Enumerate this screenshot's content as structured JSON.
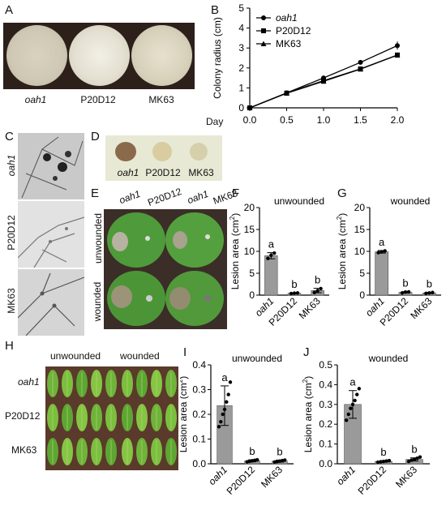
{
  "panels": {
    "A": {
      "letter": "A",
      "labels": [
        "oah1",
        "P20D12",
        "MK63"
      ]
    },
    "B": {
      "letter": "B",
      "day_label": "Day"
    },
    "C": {
      "letter": "C",
      "labels": [
        "oah1",
        "P20D12",
        "MK63"
      ]
    },
    "D": {
      "letter": "D",
      "labels": [
        "oah1",
        "P20D12",
        "MK63"
      ]
    },
    "E": {
      "letter": "E",
      "col_labels": [
        "oah1",
        "P20D12",
        "oah1",
        "MK63"
      ],
      "row_labels": [
        "unwounded",
        "wounded"
      ]
    },
    "F": {
      "letter": "F"
    },
    "G": {
      "letter": "G"
    },
    "H": {
      "letter": "H",
      "col_labels": [
        "unwounded",
        "wounded"
      ],
      "row_labels": [
        "oah1",
        "P20D12",
        "MK63"
      ]
    },
    "I": {
      "letter": "I"
    },
    "J": {
      "letter": "J"
    }
  },
  "colors": {
    "bar": "#9a9a9a",
    "leaf": "#4f9a3a",
    "background_dish": "#3a2a22"
  },
  "chart_data": [
    {
      "id": "B",
      "type": "line",
      "title": "",
      "xlabel": "",
      "ylabel": "Colony radius (cm)",
      "x": [
        0.0,
        0.5,
        1.0,
        1.5,
        2.0
      ],
      "xticks": [
        "0.0",
        "0.5",
        "1.0",
        "1.5",
        "2.0"
      ],
      "yticks": [
        "0",
        "1",
        "2",
        "3",
        "4",
        "5"
      ],
      "xlim": [
        0,
        2
      ],
      "ylim": [
        0,
        5
      ],
      "legend_position": "top-left",
      "series": [
        {
          "name": "oah1",
          "marker": "circle",
          "values": [
            0,
            0.75,
            1.5,
            2.28,
            3.12
          ]
        },
        {
          "name": "P20D12",
          "marker": "square",
          "values": [
            0,
            0.74,
            1.36,
            1.95,
            2.65
          ]
        },
        {
          "name": "MK63",
          "marker": "triangle",
          "values": [
            0,
            0.73,
            1.33,
            1.94,
            2.64
          ]
        }
      ]
    },
    {
      "id": "F",
      "type": "bar",
      "title": "unwounded",
      "ylabel": "Lesion area (cm²)",
      "categories": [
        "oah1",
        "P20D12",
        "MK63"
      ],
      "values": [
        9.0,
        0.45,
        1.05
      ],
      "errors": [
        0.7,
        0.1,
        0.5
      ],
      "points": [
        [
          8.4,
          9.1,
          9.6
        ],
        [
          0.35,
          0.45,
          0.5
        ],
        [
          0.6,
          1.0,
          1.5
        ]
      ],
      "letters": [
        "a",
        "b",
        "b"
      ],
      "yticks": [
        "0",
        "5",
        "10",
        "15",
        "20"
      ],
      "ylim": [
        0,
        20
      ]
    },
    {
      "id": "G",
      "type": "bar",
      "title": "wounded",
      "ylabel": "Lesion area (cm²)",
      "categories": [
        "oah1",
        "P20D12",
        "MK63"
      ],
      "values": [
        9.9,
        0.65,
        0.5
      ],
      "errors": [
        0.3,
        0.15,
        0.12
      ],
      "points": [
        [
          9.7,
          9.9,
          10.1
        ],
        [
          0.5,
          0.7,
          0.75
        ],
        [
          0.4,
          0.5,
          0.6
        ]
      ],
      "letters": [
        "a",
        "b",
        "b"
      ],
      "yticks": [
        "0",
        "5",
        "10",
        "15",
        "20"
      ],
      "ylim": [
        0,
        20
      ]
    },
    {
      "id": "I",
      "type": "bar",
      "title": "unwounded",
      "ylabel": "Lesion area (cm²)",
      "categories": [
        "oah1",
        "P20D12",
        "MK63"
      ],
      "values": [
        0.235,
        0.012,
        0.011
      ],
      "errors": [
        0.08,
        0.004,
        0.004
      ],
      "points": [
        [
          0.15,
          0.17,
          0.2,
          0.22,
          0.25,
          0.28,
          0.33
        ],
        [
          0.008,
          0.01,
          0.012,
          0.014,
          0.016
        ],
        [
          0.007,
          0.009,
          0.011,
          0.013,
          0.015
        ]
      ],
      "letters": [
        "a",
        "b",
        "b"
      ],
      "yticks": [
        "0.0",
        "0.1",
        "0.2",
        "0.3",
        "0.4"
      ],
      "ylim": [
        0,
        0.4
      ]
    },
    {
      "id": "J",
      "type": "bar",
      "title": "wounded",
      "ylabel": "Lesion area (cm²)",
      "categories": [
        "oah1",
        "P20D12",
        "MK63"
      ],
      "values": [
        0.3,
        0.012,
        0.022
      ],
      "errors": [
        0.07,
        0.004,
        0.008
      ],
      "points": [
        [
          0.22,
          0.25,
          0.28,
          0.3,
          0.32,
          0.35,
          0.38
        ],
        [
          0.008,
          0.01,
          0.012,
          0.014,
          0.016
        ],
        [
          0.012,
          0.018,
          0.022,
          0.028,
          0.034
        ]
      ],
      "letters": [
        "a",
        "b",
        "b"
      ],
      "yticks": [
        "0.0",
        "0.1",
        "0.2",
        "0.3",
        "0.4",
        "0.5"
      ],
      "ylim": [
        0,
        0.5
      ]
    }
  ]
}
